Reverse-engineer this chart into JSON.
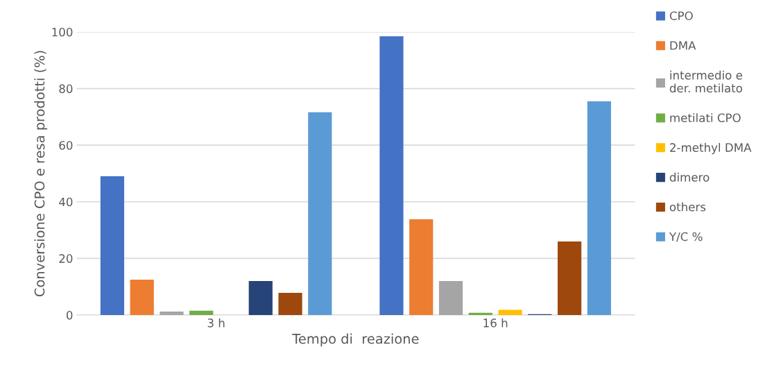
{
  "chart_data": {
    "type": "bar",
    "xlabel": "Tempo di  reazione",
    "ylabel": "Conversione CPO e resa prodotti (%)",
    "categories": [
      "3 h",
      "16 h"
    ],
    "series": [
      {
        "name": "CPO",
        "color": "#4472c4",
        "values": [
          49,
          98.5
        ]
      },
      {
        "name": "DMA",
        "color": "#ed7d31",
        "values": [
          12.5,
          33.8
        ]
      },
      {
        "name": "intermedio e der. metilato",
        "color": "#a5a5a5",
        "values": [
          1.2,
          12
        ]
      },
      {
        "name": "metilati CPO",
        "color": "#70ad47",
        "values": [
          1.5,
          0.8
        ]
      },
      {
        "name": "2-methyl DMA",
        "color": "#ffc000",
        "values": [
          0,
          1.8
        ]
      },
      {
        "name": "dimero",
        "color": "#264478",
        "values": [
          12,
          0.3
        ]
      },
      {
        "name": "others",
        "color": "#9e480e",
        "values": [
          7.8,
          26
        ]
      },
      {
        "name": "Y/C %",
        "color": "#5b9bd5",
        "values": [
          71.6,
          75.5
        ]
      }
    ],
    "ylim": [
      0,
      100
    ],
    "yticks": [
      0,
      20,
      40,
      60,
      80,
      100
    ],
    "grid": "y",
    "legend": "right"
  }
}
